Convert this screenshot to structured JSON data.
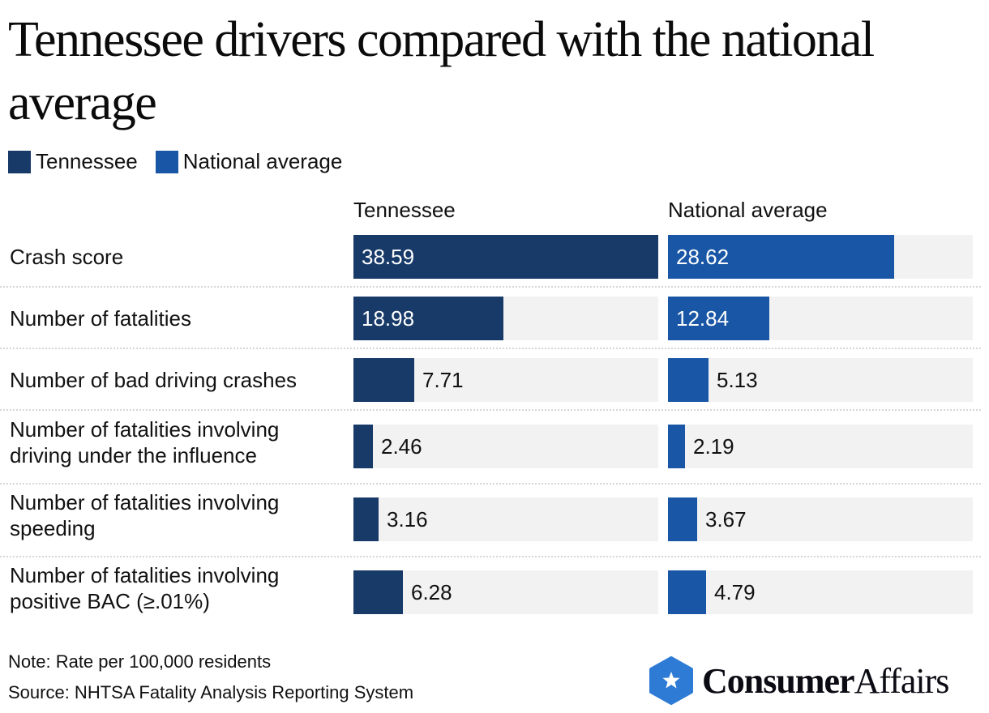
{
  "chart_data": {
    "type": "bar",
    "orientation": "horizontal",
    "title": "Tennessee drivers compared with the national average",
    "legend": [
      {
        "name": "Tennessee",
        "color": "#173a68"
      },
      {
        "name": "National average",
        "color": "#1957a6"
      }
    ],
    "legend_position": "top-left",
    "column_headers": [
      "Tennessee",
      "National average"
    ],
    "categories": [
      "Crash score",
      "Number of fatalities",
      "Number of bad driving crashes",
      "Number of fatalities involving driving under the influence",
      "Number of fatalities involving speeding",
      "Number of fatalities involving positive BAC (≥.01%)"
    ],
    "category_lines": [
      [
        "Crash score"
      ],
      [
        "Number of fatalities"
      ],
      [
        "Number of bad driving crashes"
      ],
      [
        "Number of fatalities involving",
        "driving under the influence"
      ],
      [
        "Number of fatalities involving",
        "speeding"
      ],
      [
        "Number of fatalities involving",
        "positive BAC (≥.01%)"
      ]
    ],
    "series": [
      {
        "name": "Tennessee",
        "values": [
          38.59,
          18.98,
          7.71,
          2.46,
          3.16,
          6.28
        ],
        "labels": [
          "38.59",
          "18.98",
          "7.71",
          "2.46",
          "3.16",
          "6.28"
        ]
      },
      {
        "name": "National average",
        "values": [
          28.62,
          12.84,
          5.13,
          2.19,
          3.67,
          4.79
        ],
        "labels": [
          "28.62",
          "12.84",
          "5.13",
          "2.19",
          "3.67",
          "4.79"
        ]
      }
    ],
    "xlim": [
      0,
      38.59
    ],
    "grid": false,
    "track_color": "#f2f2f2"
  },
  "footer": {
    "note": "Note: Rate per 100,000 residents",
    "source": "Source: NHTSA Fatality Analysis Reporting System"
  },
  "brand": {
    "name_bold": "Consumer",
    "name_regular": "Affairs",
    "icon": "star-hexagon-icon",
    "color": "#2e7bd6"
  }
}
